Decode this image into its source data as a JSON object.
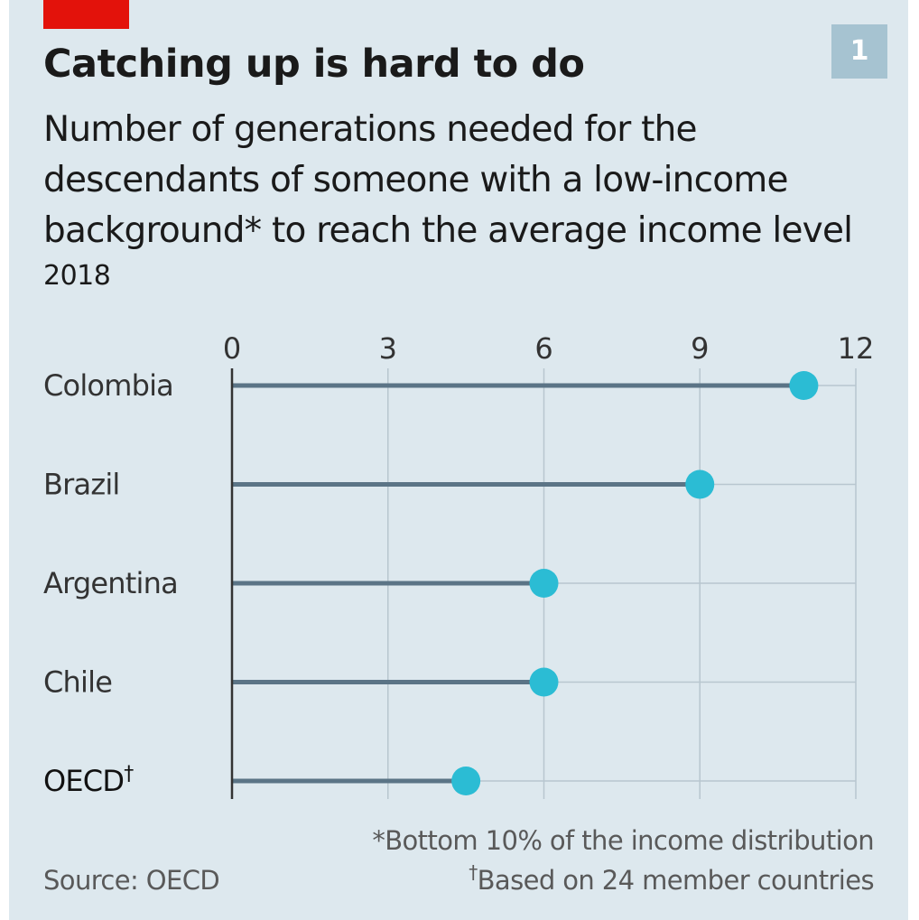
{
  "header": {
    "title": "Catching up is hard to do",
    "badge": "1",
    "subtitle": "Number of generations needed for the descendants of someone with a low-income background* to reach the average income level",
    "year": "2018"
  },
  "colors": {
    "accent_red": "#e3120b",
    "badge_bg": "#a6c3d1",
    "stem": "#5b7486",
    "dot": "#2bbcd4",
    "grid": "#b8c6cf",
    "axis": "#333333"
  },
  "chart_data": {
    "type": "lollipop",
    "categories": [
      "Colombia",
      "Brazil",
      "Argentina",
      "Chile",
      "OECD"
    ],
    "values": [
      11,
      9,
      6,
      6,
      4.5
    ],
    "x_ticks": [
      "0",
      "3",
      "6",
      "9",
      "12"
    ],
    "xlim": [
      0,
      12
    ],
    "grid": true,
    "highlight_last_category": true,
    "last_category_marker": "†"
  },
  "footer": {
    "note1": "*Bottom 10% of the income distribution",
    "note2_marker": "†",
    "note2": "Based on 24 member countries",
    "source": "Source: OECD"
  }
}
